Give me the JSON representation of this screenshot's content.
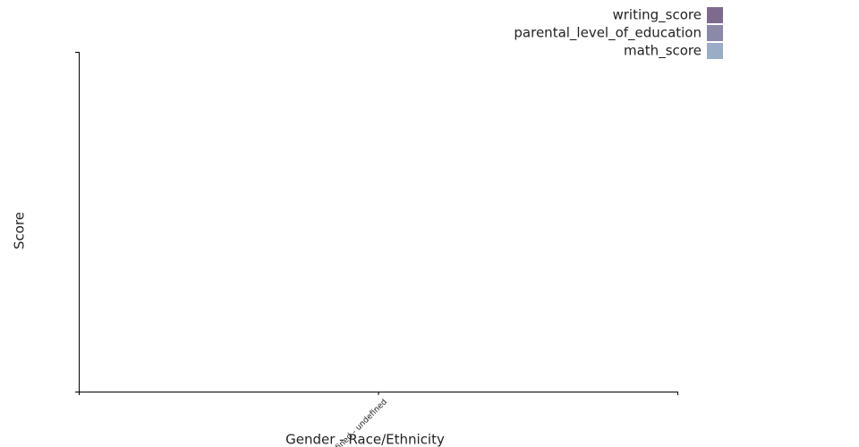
{
  "chart_data": {
    "type": "bar",
    "x_label": "Gender - Race/Ethnicity",
    "y_label": "Score",
    "categories": [
      "undefined - undefined"
    ],
    "series": [
      {
        "name": "writing_score",
        "color": "#7e6a8b",
        "values": [
          null
        ]
      },
      {
        "name": "parental_level_of_education",
        "color": "#8a89a8",
        "values": [
          null
        ]
      },
      {
        "name": "math_score",
        "color": "#9aadc6",
        "values": [
          null
        ]
      }
    ],
    "legend": "top-right"
  }
}
